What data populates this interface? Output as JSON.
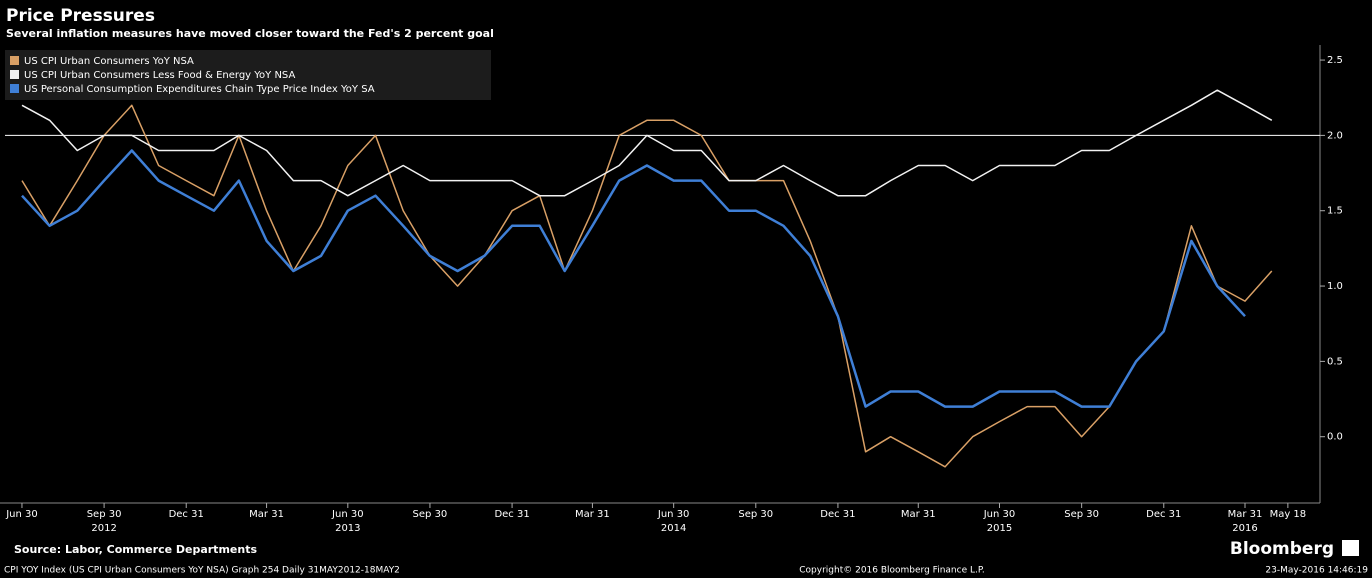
{
  "chart_data": {
    "type": "line",
    "title": "Price Pressures",
    "subtitle": "Several inflation measures have moved closer toward the Fed's 2 percent goal",
    "source": "Source: Labor, Commerce Departments",
    "brand": "Bloomberg",
    "footer_left": "CPI YOY Index (US CPI Urban Consumers YoY NSA) Graph 254  Daily 31MAY2012-18MAY2",
    "footer_center": "Copyright© 2016 Bloomberg Finance L.P.",
    "footer_right": "23-May-2016 14:46:19",
    "x": [
      "2012-06-30",
      "2012-07-31",
      "2012-08-31",
      "2012-09-30",
      "2012-10-31",
      "2012-11-30",
      "2012-12-31",
      "2013-01-31",
      "2013-02-28",
      "2013-03-31",
      "2013-04-30",
      "2013-05-31",
      "2013-06-30",
      "2013-07-31",
      "2013-08-31",
      "2013-09-30",
      "2013-10-31",
      "2013-11-30",
      "2013-12-31",
      "2014-01-31",
      "2014-02-28",
      "2014-03-31",
      "2014-04-30",
      "2014-05-31",
      "2014-06-30",
      "2014-07-31",
      "2014-08-31",
      "2014-09-30",
      "2014-10-31",
      "2014-11-30",
      "2014-12-31",
      "2015-01-31",
      "2015-02-28",
      "2015-03-31",
      "2015-04-30",
      "2015-05-31",
      "2015-06-30",
      "2015-07-31",
      "2015-08-31",
      "2015-09-30",
      "2015-10-31",
      "2015-11-30",
      "2015-12-31",
      "2016-01-31",
      "2016-02-29",
      "2016-03-31",
      "2016-04-30"
    ],
    "series": [
      {
        "name": "US CPI Urban Consumers YoY NSA",
        "color": "#d9a066",
        "values": [
          1.7,
          1.4,
          1.7,
          2.0,
          2.2,
          1.8,
          1.7,
          1.6,
          2.0,
          1.5,
          1.1,
          1.4,
          1.8,
          2.0,
          1.5,
          1.2,
          1.0,
          1.2,
          1.5,
          1.6,
          1.1,
          1.5,
          2.0,
          2.1,
          2.1,
          2.0,
          1.7,
          1.7,
          1.7,
          1.3,
          0.8,
          -0.1,
          0.0,
          -0.1,
          -0.2,
          0.0,
          0.1,
          0.2,
          0.2,
          0.0,
          0.2,
          0.5,
          0.7,
          1.4,
          1.0,
          0.9,
          1.1
        ]
      },
      {
        "name": "US CPI Urban Consumers Less Food & Energy YoY NSA",
        "color": "#f2f2f2",
        "values": [
          2.2,
          2.1,
          1.9,
          2.0,
          2.0,
          1.9,
          1.9,
          1.9,
          2.0,
          1.9,
          1.7,
          1.7,
          1.6,
          1.7,
          1.8,
          1.7,
          1.7,
          1.7,
          1.7,
          1.6,
          1.6,
          1.7,
          1.8,
          2.0,
          1.9,
          1.9,
          1.7,
          1.7,
          1.8,
          1.7,
          1.6,
          1.6,
          1.7,
          1.8,
          1.8,
          1.7,
          1.8,
          1.8,
          1.8,
          1.9,
          1.9,
          2.0,
          2.1,
          2.2,
          2.3,
          2.2,
          2.1
        ]
      },
      {
        "name": "US Personal Consumption Expenditures Chain Type Price Index YoY SA",
        "color": "#3f7fd6",
        "values": [
          1.6,
          1.4,
          1.5,
          1.7,
          1.9,
          1.7,
          1.6,
          1.5,
          1.7,
          1.3,
          1.1,
          1.2,
          1.5,
          1.6,
          1.4,
          1.2,
          1.1,
          1.2,
          1.4,
          1.4,
          1.1,
          1.4,
          1.7,
          1.8,
          1.7,
          1.7,
          1.5,
          1.5,
          1.4,
          1.2,
          0.8,
          0.2,
          0.3,
          0.3,
          0.2,
          0.2,
          0.3,
          0.3,
          0.3,
          0.2,
          0.2,
          0.5,
          0.7,
          1.3,
          1.0,
          0.8,
          null
        ]
      }
    ],
    "xlim": [
      "2012-06-11",
      "2016-06-23"
    ],
    "xticks": [
      {
        "value": "2012-06-30",
        "label": "Jun 30"
      },
      {
        "value": "2012-09-30",
        "label": "Sep 30",
        "year": "2012"
      },
      {
        "value": "2012-12-31",
        "label": "Dec 31"
      },
      {
        "value": "2013-03-31",
        "label": "Mar 31"
      },
      {
        "value": "2013-06-30",
        "label": "Jun 30",
        "year": "2013"
      },
      {
        "value": "2013-09-30",
        "label": "Sep 30"
      },
      {
        "value": "2013-12-31",
        "label": "Dec 31"
      },
      {
        "value": "2014-03-31",
        "label": "Mar 31"
      },
      {
        "value": "2014-06-30",
        "label": "Jun 30",
        "year": "2014"
      },
      {
        "value": "2014-09-30",
        "label": "Sep 30"
      },
      {
        "value": "2014-12-31",
        "label": "Dec 31"
      },
      {
        "value": "2015-03-31",
        "label": "Mar 31"
      },
      {
        "value": "2015-06-30",
        "label": "Jun 30",
        "year": "2015"
      },
      {
        "value": "2015-09-30",
        "label": "Sep 30"
      },
      {
        "value": "2015-12-31",
        "label": "Dec 31"
      },
      {
        "value": "2016-03-31",
        "label": "Mar 31",
        "year": "2016"
      },
      {
        "value": "2016-05-18",
        "label": "May 18"
      }
    ],
    "ylim": [
      -0.44,
      2.6
    ],
    "yticks": [
      {
        "value": 0,
        "label": "0.0"
      },
      0.5,
      {
        "value": 1,
        "label": "1.0"
      },
      1.5,
      {
        "value": 2,
        "label": "2.0"
      },
      2.5
    ],
    "reference_lines": [
      2
    ],
    "legend": "top-left"
  }
}
